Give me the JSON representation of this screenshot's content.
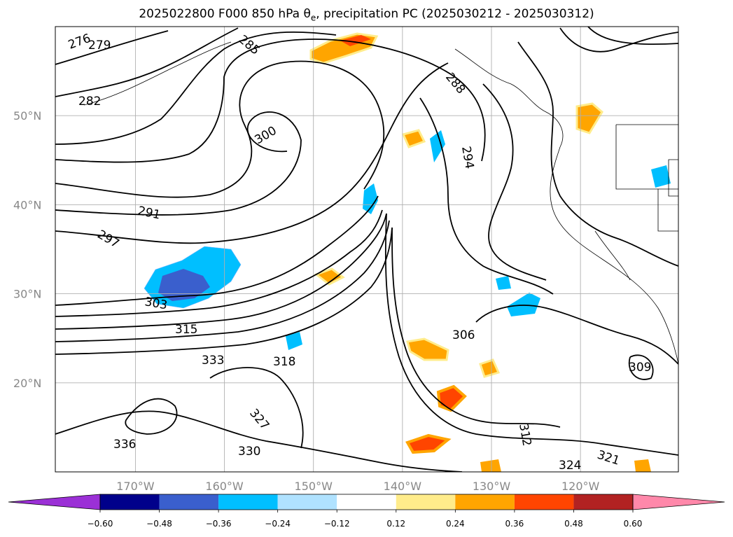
{
  "title": {
    "prefix": "2025022800 F000 850 hPa θ",
    "sub": "e",
    "suffix": ", precipitation PC (2025030212 - 2025030312)"
  },
  "map": {
    "lat_labels": [
      {
        "text": "50°N",
        "lat": 50
      },
      {
        "text": "40°N",
        "lat": 40
      },
      {
        "text": "30°N",
        "lat": 30
      },
      {
        "text": "20°N",
        "lat": 20
      }
    ],
    "lon_labels": [
      {
        "text": "170°W",
        "lon": -170
      },
      {
        "text": "160°W",
        "lon": -160
      },
      {
        "text": "150°W",
        "lon": -150
      },
      {
        "text": "140°W",
        "lon": -140
      },
      {
        "text": "130°W",
        "lon": -130
      },
      {
        "text": "120°W",
        "lon": -120
      }
    ],
    "contour_labels": [
      "276",
      "279",
      "282",
      "285",
      "288",
      "291",
      "294",
      "297",
      "300",
      "303",
      "306",
      "309",
      "312",
      "315",
      "318",
      "321",
      "324",
      "327",
      "330",
      "333",
      "336"
    ],
    "colorbar": {
      "ticks": [
        "−0.60",
        "−0.48",
        "−0.36",
        "−0.24",
        "−0.12",
        "0.12",
        "0.24",
        "0.36",
        "0.48",
        "0.60"
      ],
      "colors": [
        "#9b30d6",
        "#00008b",
        "#3a5fcd",
        "#00bfff",
        "#b0e2ff",
        "#ffffff",
        "#ffec8b",
        "#ffa500",
        "#ff4500",
        "#b22222",
        "#ff88aa"
      ]
    }
  }
}
